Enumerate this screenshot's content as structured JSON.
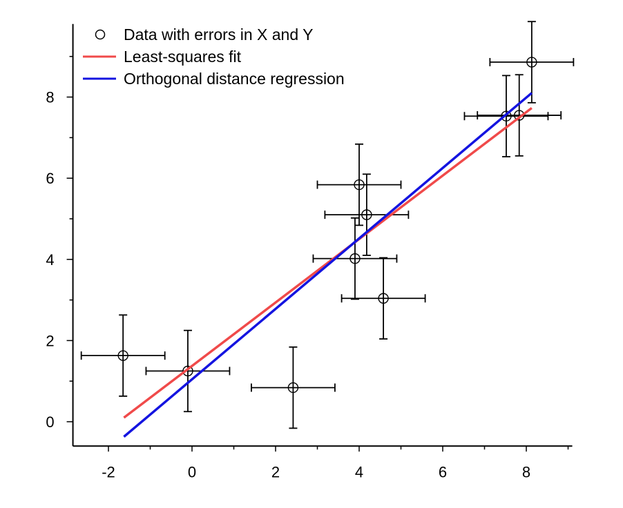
{
  "chart_data": {
    "type": "scatter",
    "title": "",
    "xlabel": "",
    "ylabel": "",
    "xlim": [
      -2.85,
      9.1
    ],
    "ylim": [
      -0.6,
      9.8
    ],
    "x_ticks": [
      -2,
      0,
      2,
      4,
      6,
      8
    ],
    "y_ticks": [
      0,
      2,
      4,
      6,
      8
    ],
    "x_tick_labels": [
      "-2",
      "0",
      "2",
      "4",
      "6",
      "8"
    ],
    "y_tick_labels": [
      "0",
      "2",
      "4",
      "6",
      "8"
    ],
    "grid": false,
    "legend_position": "top-left",
    "legend": [
      {
        "label": "Data with errors in X and Y",
        "kind": "marker",
        "color": "#000000"
      },
      {
        "label": "Least-squares fit",
        "kind": "line",
        "color": "#f04a4a"
      },
      {
        "label": "Orthogonal distance regression",
        "kind": "line",
        "color": "#1414e0"
      }
    ],
    "series": [
      {
        "type": "scatter",
        "points": [
          {
            "x": -1.65,
            "y": 1.63,
            "xerr": 1.0,
            "yerr": 1.0
          },
          {
            "x": -0.1,
            "y": 1.25,
            "xerr": 1.0,
            "yerr": 1.0
          },
          {
            "x": 2.42,
            "y": 0.84,
            "xerr": 1.0,
            "yerr": 1.0
          },
          {
            "x": 3.9,
            "y": 4.02,
            "xerr": 1.0,
            "yerr": 1.0
          },
          {
            "x": 4.0,
            "y": 5.84,
            "xerr": 1.0,
            "yerr": 1.0
          },
          {
            "x": 4.18,
            "y": 5.1,
            "xerr": 1.0,
            "yerr": 1.0
          },
          {
            "x": 4.58,
            "y": 3.04,
            "xerr": 1.0,
            "yerr": 1.0
          },
          {
            "x": 7.52,
            "y": 7.53,
            "xerr": 1.0,
            "yerr": 1.0
          },
          {
            "x": 7.83,
            "y": 7.55,
            "xerr": 1.0,
            "yerr": 1.0
          },
          {
            "x": 8.13,
            "y": 8.86,
            "xerr": 1.0,
            "yerr": 1.0
          }
        ]
      },
      {
        "type": "line",
        "x": [
          -1.63,
          8.13
        ],
        "y": [
          0.1,
          7.73
        ]
      },
      {
        "type": "line",
        "x": [
          -1.63,
          8.13
        ],
        "y": [
          -0.37,
          8.1
        ]
      }
    ]
  }
}
